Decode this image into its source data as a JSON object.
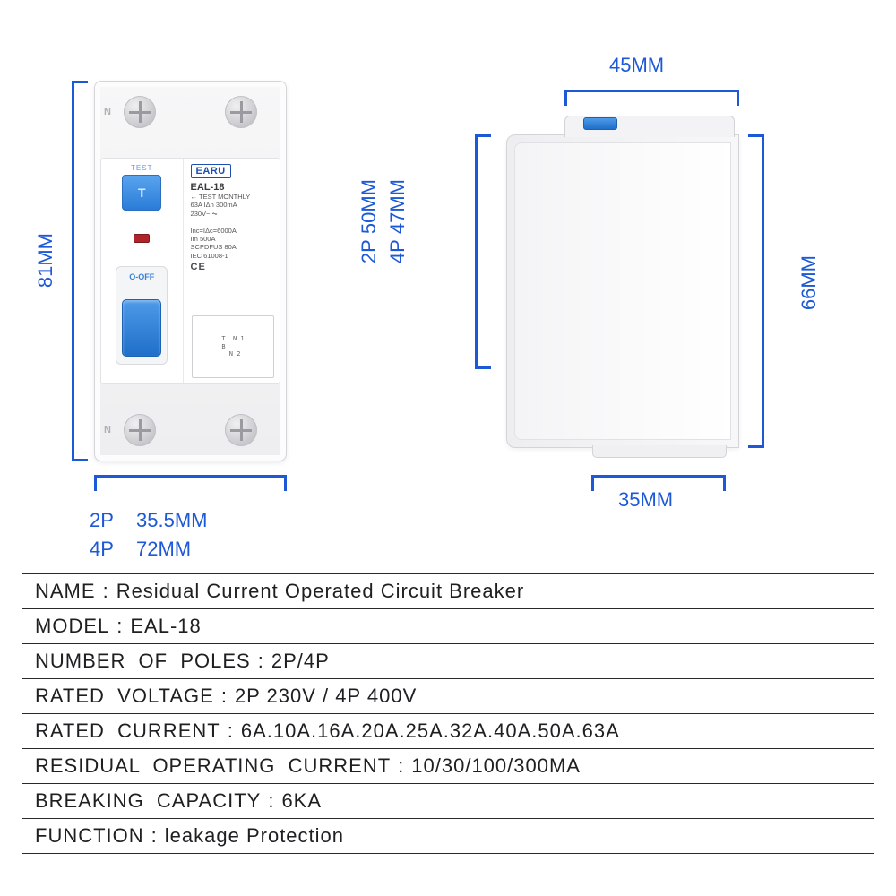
{
  "colors": {
    "accent": "#1d59d6",
    "brand_blue": "#1d4fb0",
    "switch_blue_top": "#4e9ae9",
    "switch_blue_bottom": "#1f6fc9",
    "indicator_red": "#b1232a",
    "body_light": "#f7f7f9",
    "body_shadow": "#d3d3d8",
    "rule": "#2a2a2c"
  },
  "device": {
    "brand": "EARU",
    "model": "EAL-18",
    "test_label": "TEST",
    "test_button_glyph": "T",
    "off_label": "O-OFF",
    "n_mark": "N",
    "face_lines": [
      "← TEST MONTHLY",
      "63A  IΔn 300mA",
      "230V~   ⏦",
      "",
      "Inc=IΔc=6000A",
      "Im 500A",
      "SCPDFUS 80A",
      "IEC 61008-1"
    ],
    "ce": "CE",
    "wiring_caption": "T  N 1\nB\n  N 2"
  },
  "dimensions": {
    "front_height": "81MM",
    "front_width_2p_key": "2P",
    "front_width_2p_val": "35.5MM",
    "front_width_4p_key": "4P",
    "front_width_4p_val": "72MM",
    "side_top": "45MM",
    "side_bottom": "35MM",
    "side_right": "66MM",
    "mid_2p_key": "2P",
    "mid_2p_val": "50MM",
    "mid_4p_key": "4P",
    "mid_4p_val": "47MM"
  },
  "specs": [
    {
      "key": "NAME",
      "value": "Residual  Current  Operated  Circuit  Breaker"
    },
    {
      "key": "MODEL",
      "value": "EAL-18"
    },
    {
      "key": "NUMBER  OF  POLES",
      "value": "2P/4P"
    },
    {
      "key": "RATED  VOLTAGE",
      "value": "2P  230V  /  4P  400V"
    },
    {
      "key": "RATED  CURRENT",
      "value": "6A.10A.16A.20A.25A.32A.40A.50A.63A"
    },
    {
      "key": "RESIDUAL  OPERATING  CURRENT",
      "value": "10/30/100/300MA"
    },
    {
      "key": "BREAKING  CAPACITY",
      "value": "6KA"
    },
    {
      "key": "FUNCTION",
      "value": "leakage  Protection"
    }
  ]
}
